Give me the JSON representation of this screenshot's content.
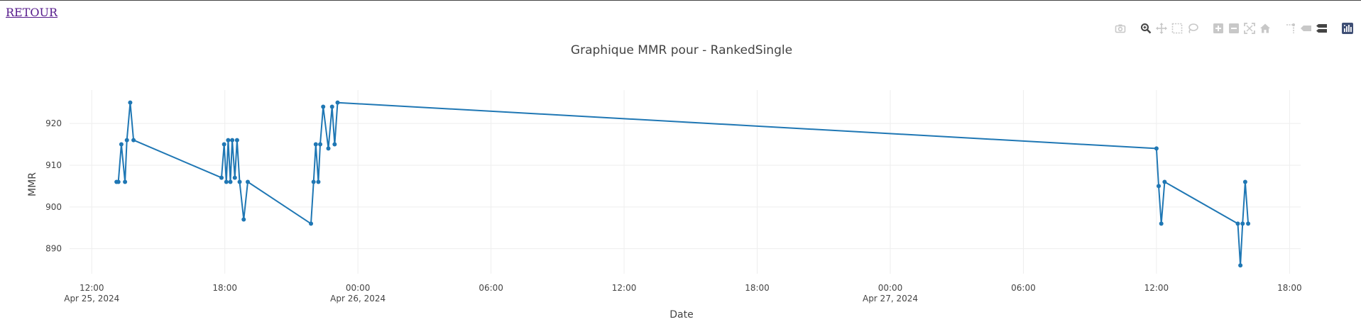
{
  "nav": {
    "back_label": "RETOUR"
  },
  "modebar": {
    "icons": [
      "camera-icon",
      "zoom-icon",
      "pan-icon",
      "box-select-icon",
      "lasso-select-icon",
      "zoom-in-icon",
      "zoom-out-icon",
      "autoscale-icon",
      "home-icon",
      "spike-lines-icon",
      "hover-closest-icon",
      "hover-compare-icon",
      "plotly-logo-icon"
    ],
    "active": "zoom-icon",
    "colors": {
      "inactive": "#c8c8c8",
      "active": "#444444",
      "logo": "#3f4f75"
    }
  },
  "chart_data": {
    "type": "line",
    "title": "Graphique MMR pour  - RankedSingle",
    "xlabel": "Date",
    "ylabel": "MMR",
    "xlim": [
      "2024-04-25 11:00",
      "2024-04-27 18:30"
    ],
    "ylim": [
      884,
      928
    ],
    "grid": true,
    "legend": "none",
    "color": "#1f77b4",
    "xticks": [
      {
        "t": "2024-04-25 12:00",
        "line1": "12:00",
        "line2": "Apr 25, 2024"
      },
      {
        "t": "2024-04-25 18:00",
        "line1": "18:00",
        "line2": ""
      },
      {
        "t": "2024-04-26 00:00",
        "line1": "00:00",
        "line2": "Apr 26, 2024"
      },
      {
        "t": "2024-04-26 06:00",
        "line1": "06:00",
        "line2": ""
      },
      {
        "t": "2024-04-26 12:00",
        "line1": "12:00",
        "line2": ""
      },
      {
        "t": "2024-04-26 18:00",
        "line1": "18:00",
        "line2": ""
      },
      {
        "t": "2024-04-27 00:00",
        "line1": "00:00",
        "line2": "Apr 27, 2024"
      },
      {
        "t": "2024-04-27 06:00",
        "line1": "06:00",
        "line2": ""
      },
      {
        "t": "2024-04-27 12:00",
        "line1": "12:00",
        "line2": ""
      },
      {
        "t": "2024-04-27 18:00",
        "line1": "18:00",
        "line2": ""
      }
    ],
    "yticks": [
      890,
      900,
      910,
      920
    ],
    "series": [
      {
        "points": [
          {
            "x": "2024-04-25 13:07",
            "y": 906
          },
          {
            "x": "2024-04-25 13:12",
            "y": 906
          },
          {
            "x": "2024-04-25 13:20",
            "y": 915
          },
          {
            "x": "2024-04-25 13:30",
            "y": 906
          },
          {
            "x": "2024-04-25 13:35",
            "y": 916
          },
          {
            "x": "2024-04-25 13:44",
            "y": 925
          },
          {
            "x": "2024-04-25 13:53",
            "y": 916
          },
          {
            "x": "2024-04-25 17:51",
            "y": 907
          },
          {
            "x": "2024-04-25 17:58",
            "y": 915
          },
          {
            "x": "2024-04-25 18:04",
            "y": 906
          },
          {
            "x": "2024-04-25 18:09",
            "y": 916
          },
          {
            "x": "2024-04-25 18:15",
            "y": 906
          },
          {
            "x": "2024-04-25 18:20",
            "y": 916
          },
          {
            "x": "2024-04-25 18:27",
            "y": 907
          },
          {
            "x": "2024-04-25 18:33",
            "y": 916
          },
          {
            "x": "2024-04-25 18:40",
            "y": 906
          },
          {
            "x": "2024-04-25 18:51",
            "y": 897
          },
          {
            "x": "2024-04-25 19:02",
            "y": 906
          },
          {
            "x": "2024-04-25 21:53",
            "y": 896
          },
          {
            "x": "2024-04-25 22:00",
            "y": 906
          },
          {
            "x": "2024-04-25 22:06",
            "y": 915
          },
          {
            "x": "2024-04-25 22:13",
            "y": 906
          },
          {
            "x": "2024-04-25 22:18",
            "y": 915
          },
          {
            "x": "2024-04-25 22:26",
            "y": 924
          },
          {
            "x": "2024-04-25 22:40",
            "y": 914
          },
          {
            "x": "2024-04-25 22:50",
            "y": 924
          },
          {
            "x": "2024-04-25 22:57",
            "y": 915
          },
          {
            "x": "2024-04-25 23:05",
            "y": 925
          },
          {
            "x": "2024-04-27 12:00",
            "y": 914
          },
          {
            "x": "2024-04-27 12:06",
            "y": 905
          },
          {
            "x": "2024-04-27 12:13",
            "y": 896
          },
          {
            "x": "2024-04-27 12:22",
            "y": 906
          },
          {
            "x": "2024-04-27 15:40",
            "y": 896
          },
          {
            "x": "2024-04-27 15:47",
            "y": 886
          },
          {
            "x": "2024-04-27 15:53",
            "y": 896
          },
          {
            "x": "2024-04-27 16:00",
            "y": 906
          },
          {
            "x": "2024-04-27 16:08",
            "y": 896
          }
        ]
      }
    ]
  }
}
